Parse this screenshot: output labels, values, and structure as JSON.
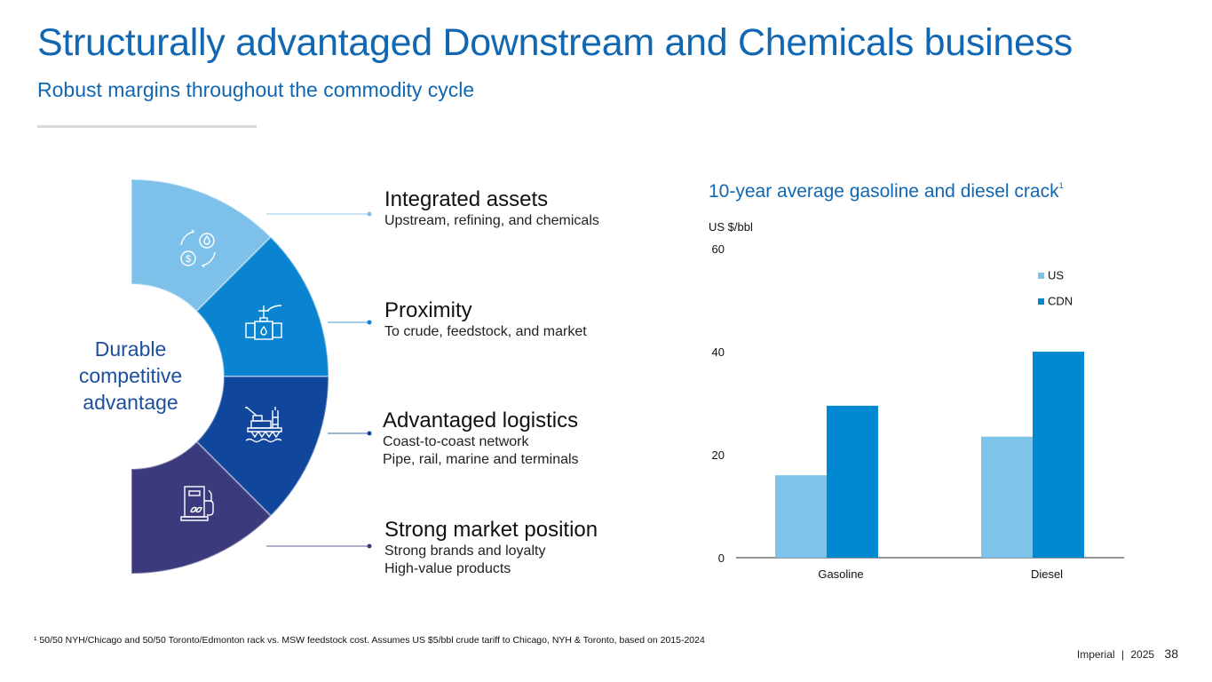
{
  "header": {
    "title": "Structurally advantaged Downstream and Chemicals business",
    "subtitle": "Robust margins throughout the commodity cycle"
  },
  "wheel": {
    "center_label_lines": [
      "Durable",
      "competitive",
      "advantage"
    ],
    "segments": [
      {
        "icon": "money-oil-exchange-icon",
        "color": "#7dc0ea"
      },
      {
        "icon": "pipeline-valve-icon",
        "color": "#0a84d0"
      },
      {
        "icon": "offshore-platform-icon",
        "color": "#10479c"
      },
      {
        "icon": "fuel-pump-icon",
        "color": "#3b3a7c"
      }
    ]
  },
  "features": [
    {
      "heading": "Integrated assets",
      "details": [
        "Upstream, refining, and chemicals"
      ],
      "dot_color": "#7dc0ea"
    },
    {
      "heading": "Proximity",
      "details": [
        "To crude, feedstock, and market"
      ],
      "dot_color": "#0a84d0"
    },
    {
      "heading": "Advantaged logistics",
      "details": [
        "Coast-to-coast network",
        "Pipe, rail, marine and terminals"
      ],
      "dot_color": "#10479c"
    },
    {
      "heading": "Strong market position",
      "details": [
        "Strong brands and loyalty",
        "High-value products"
      ],
      "dot_color": "#3b3a7c"
    }
  ],
  "chart_data": {
    "type": "bar",
    "title": "10-year average gasoline and diesel crack",
    "title_footnote_marker": "1",
    "ylabel": "US $/bbl",
    "xlabel": "",
    "categories": [
      "Gasoline",
      "Diesel"
    ],
    "series": [
      {
        "name": "US",
        "color": "#7dc3ea",
        "values": [
          16,
          23.5
        ]
      },
      {
        "name": "CDN",
        "color": "#0088d1",
        "values": [
          29.5,
          40
        ]
      }
    ],
    "ylim": [
      0,
      60
    ],
    "yticks": [
      0,
      20,
      40,
      60
    ],
    "grid": false,
    "legend": "top-right"
  },
  "footnote": "¹ 50/50 NYH/Chicago and 50/50 Toronto/Edmonton rack vs. MSW feedstock cost. Assumes US $5/bbl crude tariff to Chicago, NYH & Toronto, based on 2015-2024",
  "footer": {
    "company": "Imperial",
    "separator": "|",
    "year": "2025",
    "page": "38"
  }
}
